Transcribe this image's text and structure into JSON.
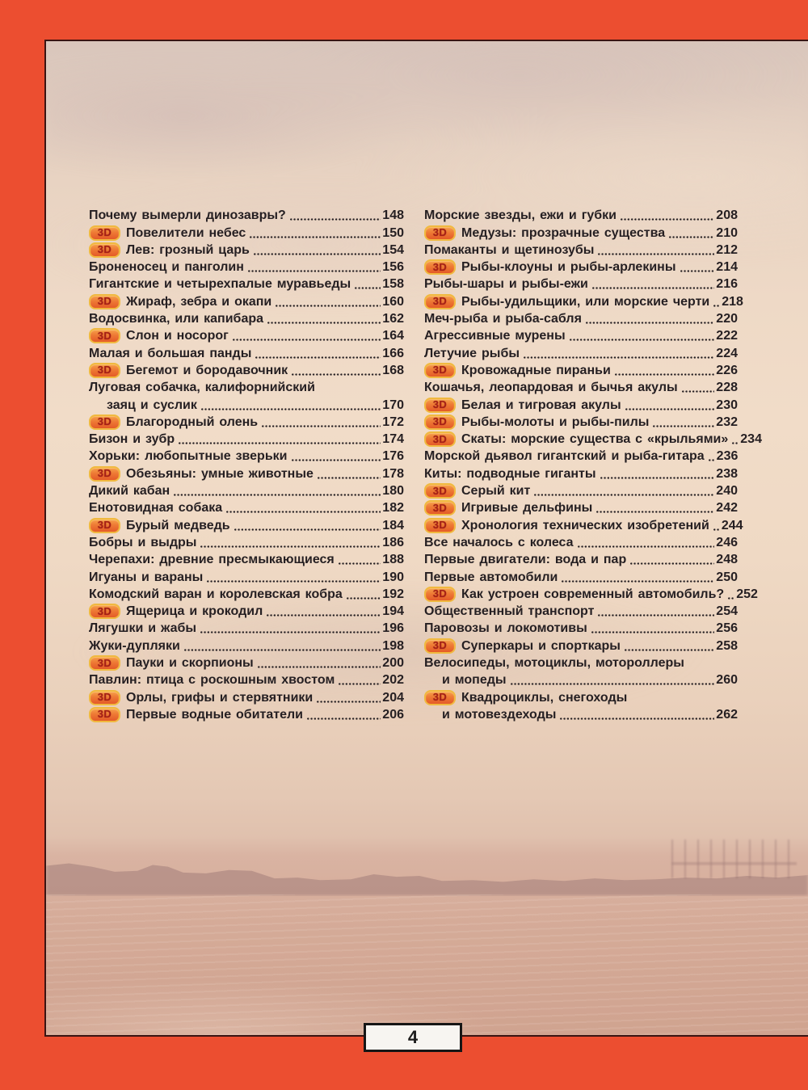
{
  "page_number": "4",
  "badge_label": "3D",
  "colors": {
    "frame": "#ec4e30",
    "ink": "#251f22",
    "badge_border": "#f0b93f",
    "badge_text": "#a61f16",
    "folio_bg": "#f7f5f1",
    "folio_border": "#161616"
  },
  "toc": {
    "left": [
      {
        "badge": false,
        "text": "Почему вымерли динозавры?",
        "page": "148"
      },
      {
        "badge": true,
        "text": "Повелители небес",
        "page": "150"
      },
      {
        "badge": true,
        "text": "Лев: грозный царь",
        "page": "154"
      },
      {
        "badge": false,
        "text": "Броненосец и панголин",
        "page": "156"
      },
      {
        "badge": false,
        "text": "Гигантские и четырехпалые муравьеды",
        "page": "158"
      },
      {
        "badge": true,
        "text": "Жираф, зебра и окапи",
        "page": "160"
      },
      {
        "badge": false,
        "text": "Водосвинка, или капибара",
        "page": "162"
      },
      {
        "badge": true,
        "text": "Слон и носорог",
        "page": "164"
      },
      {
        "badge": false,
        "text": "Малая и большая панды",
        "page": "166"
      },
      {
        "badge": true,
        "text": "Бегемот и бородавочник",
        "page": "168"
      },
      {
        "badge": false,
        "text": "Луговая собачка, калифорнийский",
        "page": null
      },
      {
        "badge": false,
        "text": "заяц и суслик",
        "page": "170",
        "indent": true
      },
      {
        "badge": true,
        "text": "Благородный олень",
        "page": "172"
      },
      {
        "badge": false,
        "text": "Бизон и зубр",
        "page": "174"
      },
      {
        "badge": false,
        "text": "Хорьки: любопытные зверьки",
        "page": "176"
      },
      {
        "badge": true,
        "text": "Обезьяны: умные животные",
        "page": "178"
      },
      {
        "badge": false,
        "text": "Дикий кабан",
        "page": "180"
      },
      {
        "badge": false,
        "text": "Енотовидная собака",
        "page": "182"
      },
      {
        "badge": true,
        "text": "Бурый медведь",
        "page": "184"
      },
      {
        "badge": false,
        "text": "Бобры и выдры",
        "page": "186"
      },
      {
        "badge": false,
        "text": "Черепахи: древние пресмыкающиеся",
        "page": "188"
      },
      {
        "badge": false,
        "text": "Игуаны и вараны",
        "page": "190"
      },
      {
        "badge": false,
        "text": "Комодский варан и королевская кобра",
        "page": "192"
      },
      {
        "badge": true,
        "text": "Ящерица и крокодил",
        "page": "194"
      },
      {
        "badge": false,
        "text": "Лягушки и жабы",
        "page": "196"
      },
      {
        "badge": false,
        "text": "Жуки-дупляки",
        "page": "198"
      },
      {
        "badge": true,
        "text": "Пауки и скорпионы",
        "page": "200"
      },
      {
        "badge": false,
        "text": "Павлин: птица с роскошным хвостом",
        "page": "202"
      },
      {
        "badge": true,
        "text": "Орлы, грифы и стервятники",
        "page": "204"
      },
      {
        "badge": true,
        "text": "Первые водные обитатели",
        "page": "206"
      }
    ],
    "right": [
      {
        "badge": false,
        "text": "Морские звезды, ежи и губки",
        "page": "208"
      },
      {
        "badge": true,
        "text": "Медузы: прозрачные существа",
        "page": "210"
      },
      {
        "badge": false,
        "text": "Помаканты и щетинозубы",
        "page": "212"
      },
      {
        "badge": true,
        "text": "Рыбы-клоуны и рыбы-арлекины",
        "page": "214"
      },
      {
        "badge": false,
        "text": "Рыбы-шары и рыбы-ежи",
        "page": "216"
      },
      {
        "badge": true,
        "text": "Рыбы-удильщики, или морские черти",
        "page": "218"
      },
      {
        "badge": false,
        "text": "Меч-рыба и рыба-сабля",
        "page": "220"
      },
      {
        "badge": false,
        "text": "Агрессивные мурены",
        "page": "222"
      },
      {
        "badge": false,
        "text": "Летучие рыбы",
        "page": "224"
      },
      {
        "badge": true,
        "text": "Кровожадные пираньи",
        "page": "226"
      },
      {
        "badge": false,
        "text": "Кошачья, леопардовая и бычья акулы",
        "page": "228"
      },
      {
        "badge": true,
        "text": "Белая и тигровая акулы",
        "page": "230"
      },
      {
        "badge": true,
        "text": "Рыбы-молоты и рыбы-пилы",
        "page": "232"
      },
      {
        "badge": true,
        "text": "Скаты: морские существа с «крыльями»",
        "page": "234"
      },
      {
        "badge": false,
        "text": "Морской дьявол гигантский и рыба-гитара",
        "page": "236"
      },
      {
        "badge": false,
        "text": "Киты: подводные гиганты",
        "page": "238"
      },
      {
        "badge": true,
        "text": "Серый кит",
        "page": "240"
      },
      {
        "badge": true,
        "text": "Игривые дельфины",
        "page": "242"
      },
      {
        "badge": true,
        "text": "Хронология технических изобретений",
        "page": "244"
      },
      {
        "badge": false,
        "text": "Все началось с колеса",
        "page": "246"
      },
      {
        "badge": false,
        "text": "Первые двигатели: вода и пар",
        "page": "248"
      },
      {
        "badge": false,
        "text": "Первые автомобили",
        "page": "250"
      },
      {
        "badge": true,
        "text": "Как устроен современный автомобиль?",
        "page": "252"
      },
      {
        "badge": false,
        "text": "Общественный транспорт",
        "page": "254"
      },
      {
        "badge": false,
        "text": "Паровозы и локомотивы",
        "page": "256"
      },
      {
        "badge": true,
        "text": "Суперкары и спорткары",
        "page": "258"
      },
      {
        "badge": false,
        "text": "Велосипеды, мотоциклы, мотороллеры",
        "page": null
      },
      {
        "badge": false,
        "text": "и мопеды",
        "page": "260",
        "indent": true
      },
      {
        "badge": true,
        "text": "Квадроциклы, снегоходы",
        "page": null
      },
      {
        "badge": false,
        "text": "и мотовездеходы",
        "page": "262",
        "indent": true
      }
    ]
  }
}
